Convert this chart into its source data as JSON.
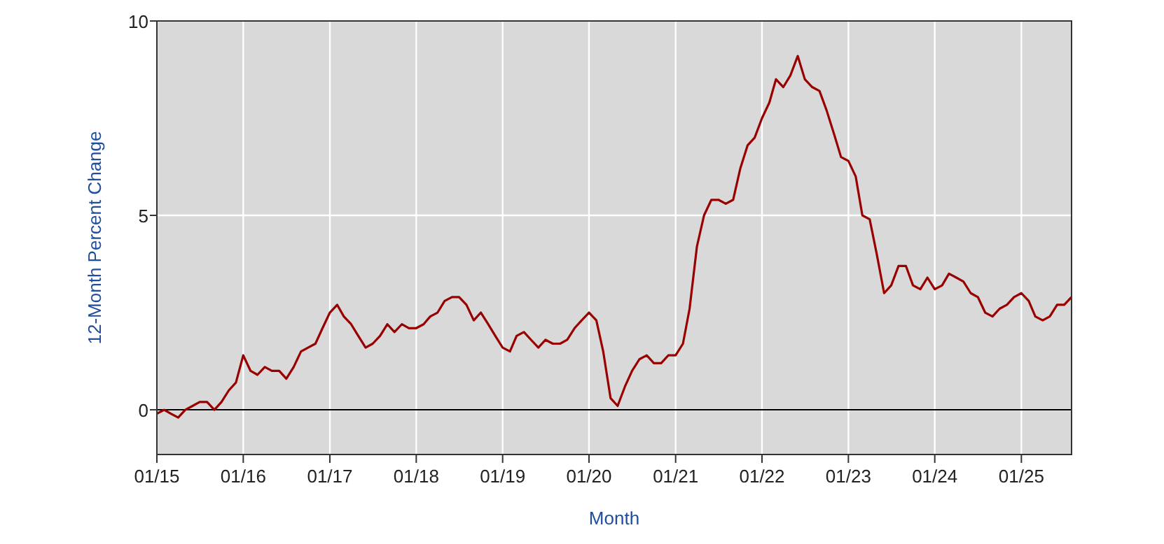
{
  "chart_data": {
    "type": "line",
    "xlabel": "Month",
    "ylabel": "12-Month Percent Change",
    "x": [
      "2015-01",
      "2015-02",
      "2015-03",
      "2015-04",
      "2015-05",
      "2015-06",
      "2015-07",
      "2015-08",
      "2015-09",
      "2015-10",
      "2015-11",
      "2015-12",
      "2016-01",
      "2016-02",
      "2016-03",
      "2016-04",
      "2016-05",
      "2016-06",
      "2016-07",
      "2016-08",
      "2016-09",
      "2016-10",
      "2016-11",
      "2016-12",
      "2017-01",
      "2017-02",
      "2017-03",
      "2017-04",
      "2017-05",
      "2017-06",
      "2017-07",
      "2017-08",
      "2017-09",
      "2017-10",
      "2017-11",
      "2017-12",
      "2018-01",
      "2018-02",
      "2018-03",
      "2018-04",
      "2018-05",
      "2018-06",
      "2018-07",
      "2018-08",
      "2018-09",
      "2018-10",
      "2018-11",
      "2018-12",
      "2019-01",
      "2019-02",
      "2019-03",
      "2019-04",
      "2019-05",
      "2019-06",
      "2019-07",
      "2019-08",
      "2019-09",
      "2019-10",
      "2019-11",
      "2019-12",
      "2020-01",
      "2020-02",
      "2020-03",
      "2020-04",
      "2020-05",
      "2020-06",
      "2020-07",
      "2020-08",
      "2020-09",
      "2020-10",
      "2020-11",
      "2020-12",
      "2021-01",
      "2021-02",
      "2021-03",
      "2021-04",
      "2021-05",
      "2021-06",
      "2021-07",
      "2021-08",
      "2021-09",
      "2021-10",
      "2021-11",
      "2021-12",
      "2022-01",
      "2022-02",
      "2022-03",
      "2022-04",
      "2022-05",
      "2022-06",
      "2022-07",
      "2022-08",
      "2022-09",
      "2022-10",
      "2022-11",
      "2022-12",
      "2023-01",
      "2023-02",
      "2023-03",
      "2023-04",
      "2023-05",
      "2023-06",
      "2023-07",
      "2023-08",
      "2023-09",
      "2023-10",
      "2023-11",
      "2023-12",
      "2024-01",
      "2024-02",
      "2024-03",
      "2024-04",
      "2024-05",
      "2024-06",
      "2024-07",
      "2024-08",
      "2024-09",
      "2024-10",
      "2024-11",
      "2024-12",
      "2025-01",
      "2025-02",
      "2025-03",
      "2025-04",
      "2025-05",
      "2025-06",
      "2025-07",
      "2025-08"
    ],
    "series": [
      {
        "color": "#990000",
        "values": [
          -0.1,
          0.0,
          -0.1,
          -0.2,
          0.0,
          0.1,
          0.2,
          0.2,
          0.0,
          0.2,
          0.5,
          0.7,
          1.4,
          1.0,
          0.9,
          1.1,
          1.0,
          1.0,
          0.8,
          1.1,
          1.5,
          1.6,
          1.7,
          2.1,
          2.5,
          2.7,
          2.4,
          2.2,
          1.9,
          1.6,
          1.7,
          1.9,
          2.2,
          2.0,
          2.2,
          2.1,
          2.1,
          2.2,
          2.4,
          2.5,
          2.8,
          2.9,
          2.9,
          2.7,
          2.3,
          2.5,
          2.2,
          1.9,
          1.6,
          1.5,
          1.9,
          2.0,
          1.8,
          1.6,
          1.8,
          1.7,
          1.7,
          1.8,
          2.1,
          2.3,
          2.5,
          2.3,
          1.5,
          0.3,
          0.1,
          0.6,
          1.0,
          1.3,
          1.4,
          1.2,
          1.2,
          1.4,
          1.4,
          1.7,
          2.6,
          4.2,
          5.0,
          5.4,
          5.4,
          5.3,
          5.4,
          6.2,
          6.8,
          7.0,
          7.5,
          7.9,
          8.5,
          8.3,
          8.6,
          9.1,
          8.5,
          8.3,
          8.2,
          7.7,
          7.1,
          6.5,
          6.4,
          6.0,
          5.0,
          4.9,
          4.0,
          3.0,
          3.2,
          3.7,
          3.7,
          3.2,
          3.1,
          3.4,
          3.1,
          3.2,
          3.5,
          3.4,
          3.3,
          3.0,
          2.9,
          2.5,
          2.4,
          2.6,
          2.7,
          2.9,
          3.0,
          2.8,
          2.4,
          2.3,
          2.4,
          2.7,
          2.7,
          2.9
        ]
      }
    ],
    "xlim": [
      "2015-01",
      "2025-08"
    ],
    "xticks": [
      {
        "value": "2015-01",
        "label": "01/15"
      },
      {
        "value": "2016-01",
        "label": "01/16"
      },
      {
        "value": "2017-01",
        "label": "01/17"
      },
      {
        "value": "2018-01",
        "label": "01/18"
      },
      {
        "value": "2019-01",
        "label": "01/19"
      },
      {
        "value": "2020-01",
        "label": "01/20"
      },
      {
        "value": "2021-01",
        "label": "01/21"
      },
      {
        "value": "2022-01",
        "label": "01/22"
      },
      {
        "value": "2023-01",
        "label": "01/23"
      },
      {
        "value": "2024-01",
        "label": "01/24"
      },
      {
        "value": "2025-01",
        "label": "01/25"
      }
    ],
    "ylim": [
      -1.15,
      10
    ],
    "yticks": [
      0,
      5,
      10
    ],
    "grid": true,
    "ref_lines": [
      {
        "axis": "y",
        "value": 0,
        "color": "#000000"
      }
    ]
  }
}
